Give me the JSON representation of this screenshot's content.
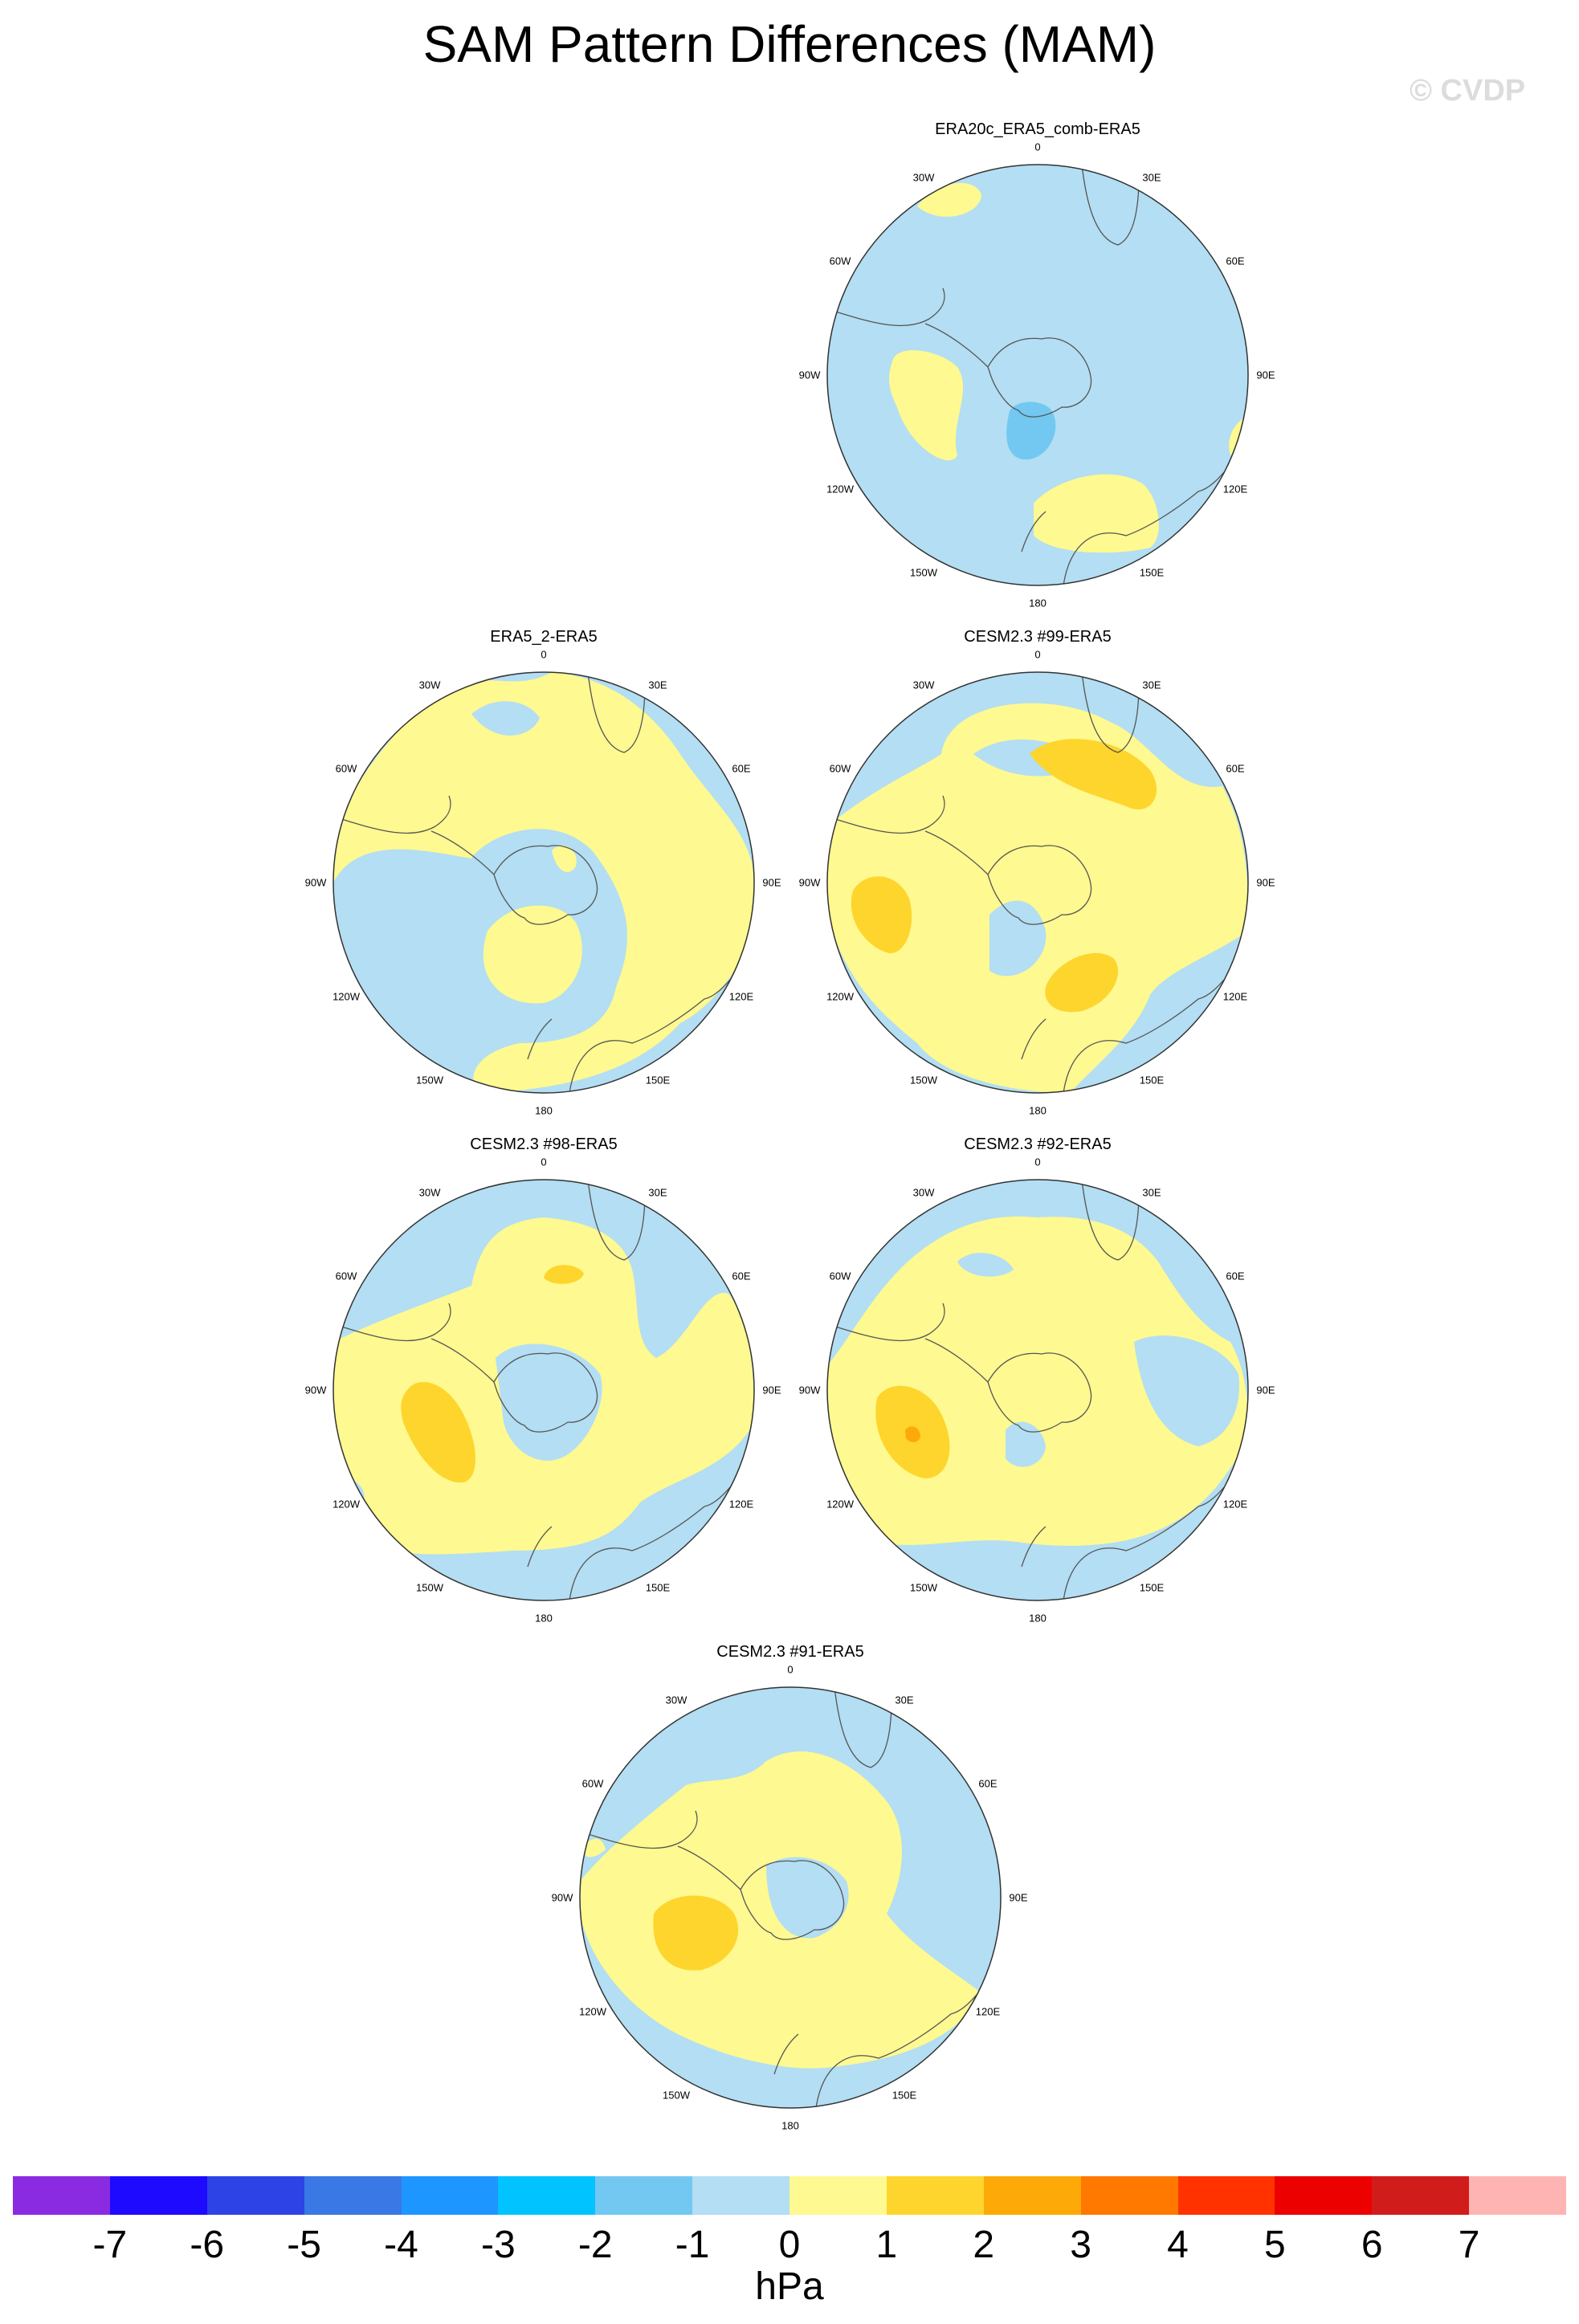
{
  "title": "SAM Pattern Differences (MAM)",
  "watermark": "© CVDP",
  "palette": {
    "ocean_base": "#b3def3",
    "pos1": "#fef990",
    "pos2": "#fed52c",
    "pos3": "#fdaa08",
    "neg2": "#72c8f1",
    "coast": "#555555",
    "border": "#333333"
  },
  "lon_labels": [
    "0",
    "30E",
    "60E",
    "90E",
    "120E",
    "150E",
    "180",
    "150W",
    "120W",
    "90W",
    "60W",
    "30W"
  ],
  "panels": [
    {
      "id": "era20c",
      "title": "ERA20c_ERA5_comb-ERA5"
    },
    {
      "id": "era5_2",
      "title": "ERA5_2-ERA5"
    },
    {
      "id": "cesm99",
      "title": "CESM2.3 #99-ERA5"
    },
    {
      "id": "cesm98",
      "title": "CESM2.3 #98-ERA5"
    },
    {
      "id": "cesm92",
      "title": "CESM2.3 #92-ERA5"
    },
    {
      "id": "cesm91",
      "title": "CESM2.3 #91-ERA5"
    }
  ],
  "colorbar": {
    "units": "hPa",
    "ticks": [
      "-7",
      "-6",
      "-5",
      "-4",
      "-3",
      "-2",
      "-1",
      "0",
      "1",
      "2",
      "3",
      "4",
      "5",
      "6",
      "7"
    ],
    "colors": [
      "#8a2be2",
      "#1e0aff",
      "#2d43e6",
      "#3a78e6",
      "#1e96ff",
      "#00c3ff",
      "#72c8f1",
      "#b3def3",
      "#fef990",
      "#fed52c",
      "#fdaa08",
      "#ff7800",
      "#ff3200",
      "#ec0000",
      "#d11c1c",
      "#ffb4b4"
    ]
  }
}
